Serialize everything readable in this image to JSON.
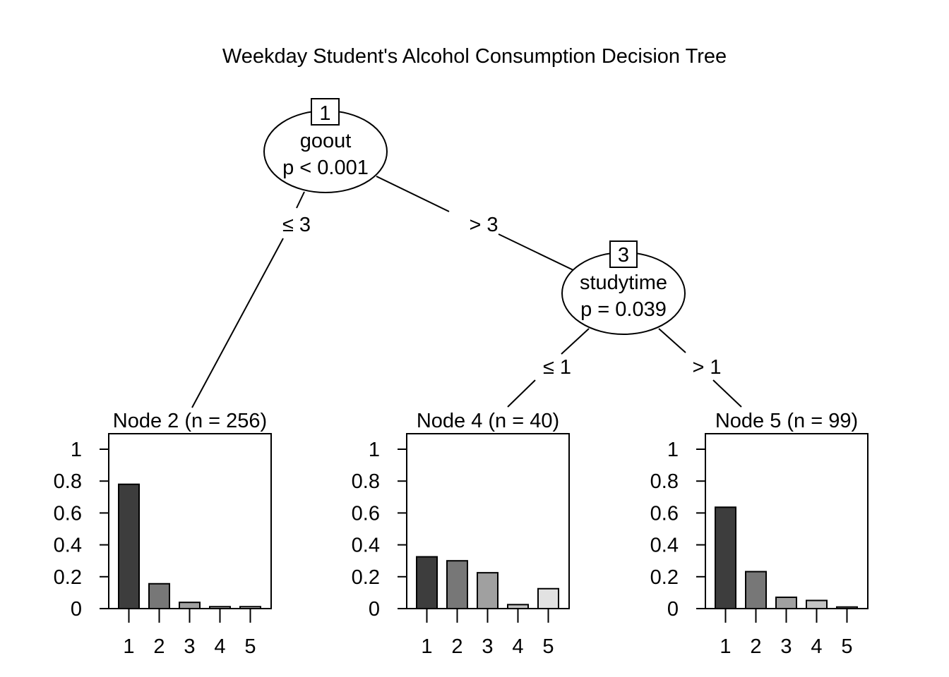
{
  "title": "Weekday Student's Alcohol Consumption Decision Tree",
  "inner_nodes": [
    {
      "id": "1",
      "variable": "goout",
      "pvalue": "p < 0.001"
    },
    {
      "id": "3",
      "variable": "studytime",
      "pvalue": "p = 0.039"
    }
  ],
  "edges": [
    {
      "from": "1",
      "to": "2",
      "label": "≤ 3"
    },
    {
      "from": "1",
      "to": "3",
      "label": "> 3"
    },
    {
      "from": "3",
      "to": "4",
      "label": "≤ 1"
    },
    {
      "from": "3",
      "to": "5",
      "label": "> 1"
    }
  ],
  "chart_data": [
    {
      "type": "bar",
      "title": "Node 2 (n = 256)",
      "categories": [
        "1",
        "2",
        "3",
        "4",
        "5"
      ],
      "values": [
        0.78,
        0.156,
        0.039,
        0.012,
        0.012
      ],
      "ylim": [
        0,
        1
      ],
      "yticks": [
        "0",
        "0.2",
        "0.4",
        "0.6",
        "0.8",
        "1"
      ],
      "colors": [
        "#3d3d3d",
        "#777777",
        "#a0a0a0",
        "#c4c4c4",
        "#e2e2e2"
      ]
    },
    {
      "type": "bar",
      "title": "Node 4 (n = 40)",
      "categories": [
        "1",
        "2",
        "3",
        "4",
        "5"
      ],
      "values": [
        0.325,
        0.3,
        0.225,
        0.025,
        0.125
      ],
      "ylim": [
        0,
        1
      ],
      "yticks": [
        "0",
        "0.2",
        "0.4",
        "0.6",
        "0.8",
        "1"
      ],
      "colors": [
        "#3d3d3d",
        "#777777",
        "#a0a0a0",
        "#c4c4c4",
        "#e2e2e2"
      ]
    },
    {
      "type": "bar",
      "title": "Node 5 (n = 99)",
      "categories": [
        "1",
        "2",
        "3",
        "4",
        "5"
      ],
      "values": [
        0.636,
        0.232,
        0.071,
        0.051,
        0.01
      ],
      "ylim": [
        0,
        1
      ],
      "yticks": [
        "0",
        "0.2",
        "0.4",
        "0.6",
        "0.8",
        "1"
      ],
      "colors": [
        "#3d3d3d",
        "#777777",
        "#a0a0a0",
        "#c4c4c4",
        "#e2e2e2"
      ]
    }
  ]
}
